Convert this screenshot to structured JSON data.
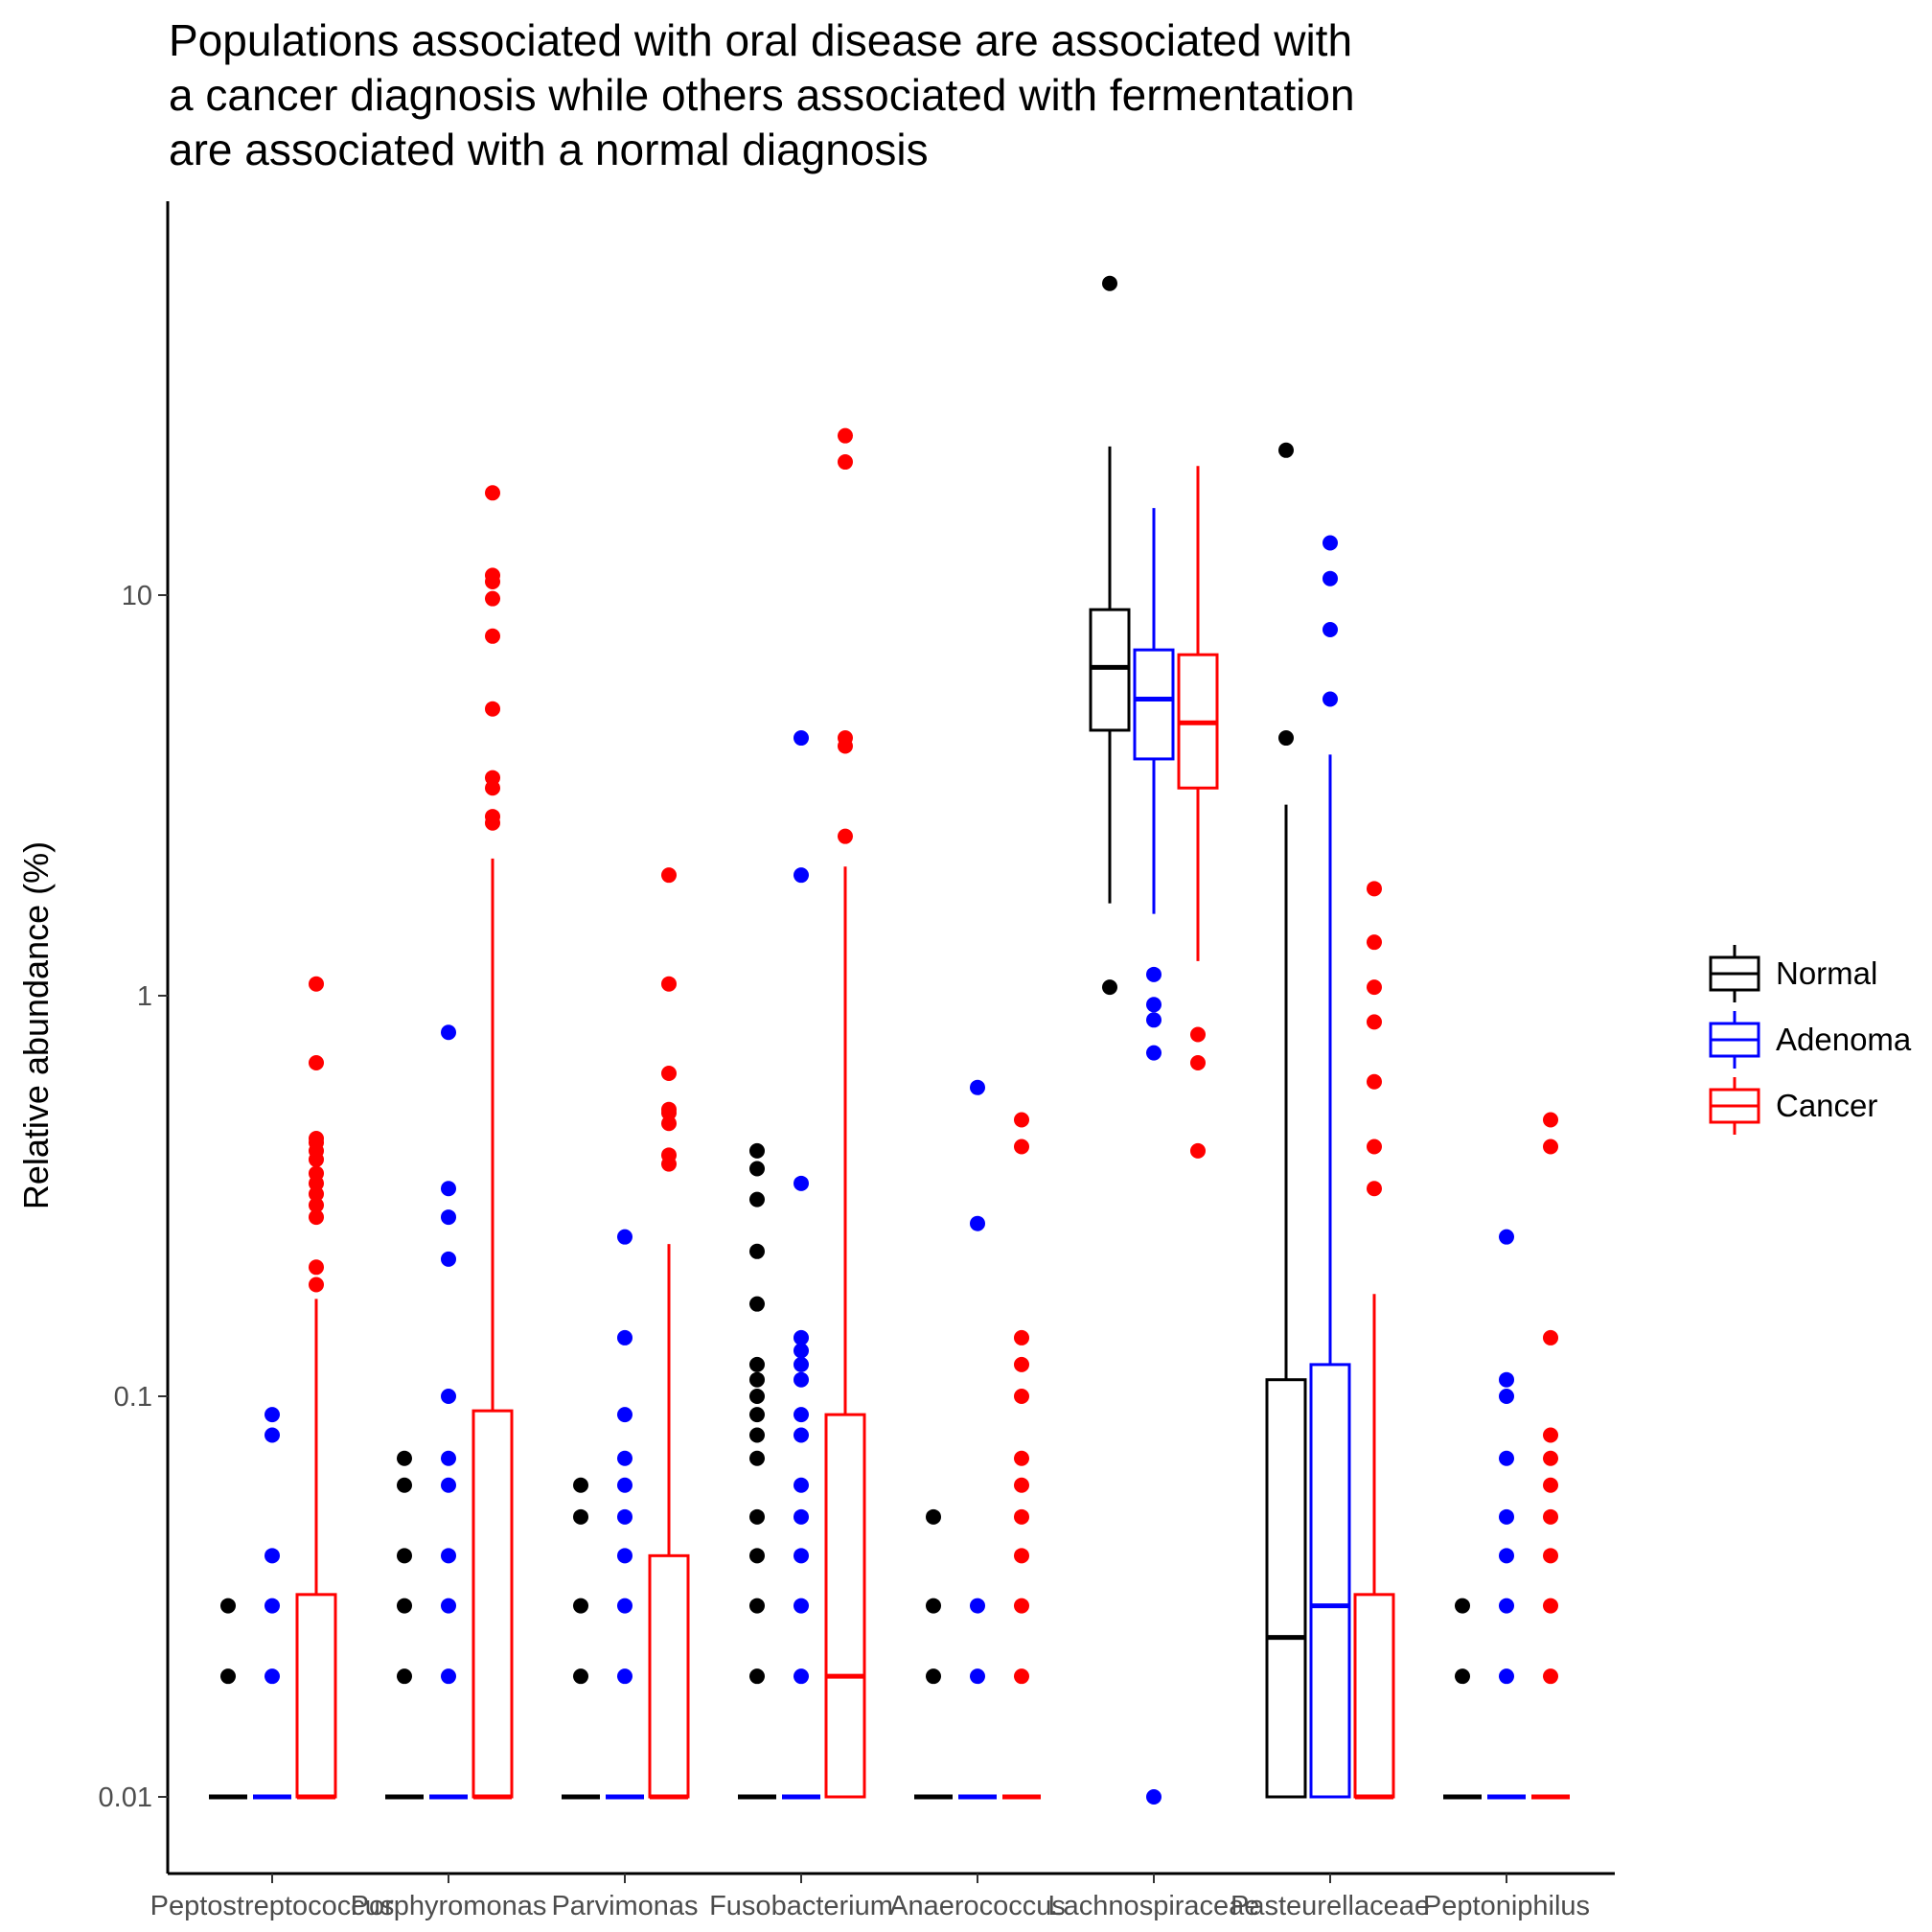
{
  "chart_data": {
    "type": "boxplot",
    "title": [
      "Populations associated with oral disease are associated with",
      "a cancer diagnosis while others associated with fermentation",
      "are associated with a normal diagnosis"
    ],
    "xlabel": "",
    "ylabel": "Relative abundance (%)",
    "yscale": "log10",
    "ylim": [
      0.0075,
      1000
    ],
    "yticks": [
      0.01,
      0.1,
      1,
      10
    ],
    "ytick_labels": [
      "0.01",
      "0.1",
      "1",
      "10"
    ],
    "legend_position": "right",
    "categories": [
      "Peptostreptococcus",
      "Porphyromonas",
      "Parvimonas",
      "Fusobacterium",
      "Anaerococcus",
      "Lachnospiraceae",
      "Pasteurellaceae",
      "Peptoniphilus"
    ],
    "series": [
      {
        "name": "Normal",
        "color": "#000000",
        "boxes": [
          {
            "q1": 0.01,
            "median": 0.01,
            "q3": 0.01,
            "whisker_low": 0.01,
            "whisker_high": 0.01,
            "outliers": [
              0.02,
              0.03
            ]
          },
          {
            "q1": 0.01,
            "median": 0.01,
            "q3": 0.01,
            "whisker_low": 0.01,
            "whisker_high": 0.01,
            "outliers": [
              0.02,
              0.03,
              0.04,
              0.06,
              0.07
            ]
          },
          {
            "q1": 0.01,
            "median": 0.01,
            "q3": 0.01,
            "whisker_low": 0.01,
            "whisker_high": 0.01,
            "outliers": [
              0.02,
              0.03,
              0.05,
              0.06
            ]
          },
          {
            "q1": 0.01,
            "median": 0.01,
            "q3": 0.01,
            "whisker_low": 0.01,
            "whisker_high": 0.01,
            "outliers": [
              0.02,
              0.03,
              0.04,
              0.05,
              0.07,
              0.08,
              0.09,
              0.1,
              0.11,
              0.12,
              0.17,
              0.23,
              0.31,
              0.37,
              0.41
            ]
          },
          {
            "q1": 0.01,
            "median": 0.01,
            "q3": 0.01,
            "whisker_low": 0.01,
            "whisker_high": 0.01,
            "outliers": [
              0.02,
              0.03,
              0.05
            ]
          },
          {
            "q1": 4.6,
            "median": 6.6,
            "q3": 9.2,
            "whisker_low": 1.7,
            "whisker_high": 23.5,
            "outliers": [
              1.05,
              60
            ]
          },
          {
            "q1": 0.01,
            "median": 0.025,
            "q3": 0.11,
            "whisker_low": 0.01,
            "whisker_high": 3.0,
            "outliers": [
              4.4,
              23
            ]
          },
          {
            "q1": 0.01,
            "median": 0.01,
            "q3": 0.01,
            "whisker_low": 0.01,
            "whisker_high": 0.01,
            "outliers": [
              0.02,
              0.03
            ]
          }
        ]
      },
      {
        "name": "Adenoma",
        "color": "#0000ff",
        "boxes": [
          {
            "q1": 0.01,
            "median": 0.01,
            "q3": 0.01,
            "whisker_low": 0.01,
            "whisker_high": 0.01,
            "outliers": [
              0.02,
              0.03,
              0.04,
              0.08,
              0.09
            ]
          },
          {
            "q1": 0.01,
            "median": 0.01,
            "q3": 0.01,
            "whisker_low": 0.01,
            "whisker_high": 0.01,
            "outliers": [
              0.02,
              0.03,
              0.04,
              0.06,
              0.07,
              0.1,
              0.22,
              0.28,
              0.33,
              0.81
            ]
          },
          {
            "q1": 0.01,
            "median": 0.01,
            "q3": 0.01,
            "whisker_low": 0.01,
            "whisker_high": 0.01,
            "outliers": [
              0.02,
              0.03,
              0.04,
              0.05,
              0.06,
              0.07,
              0.09,
              0.14,
              0.25
            ]
          },
          {
            "q1": 0.01,
            "median": 0.01,
            "q3": 0.01,
            "whisker_low": 0.01,
            "whisker_high": 0.01,
            "outliers": [
              0.02,
              0.03,
              0.04,
              0.05,
              0.06,
              0.08,
              0.09,
              0.11,
              0.12,
              0.13,
              0.14,
              0.34,
              2.0,
              4.4
            ]
          },
          {
            "q1": 0.01,
            "median": 0.01,
            "q3": 0.01,
            "whisker_low": 0.01,
            "whisker_high": 0.01,
            "outliers": [
              0.02,
              0.03,
              0.27,
              0.59
            ]
          },
          {
            "q1": 3.9,
            "median": 5.5,
            "q3": 7.3,
            "whisker_low": 1.6,
            "whisker_high": 16.5,
            "outliers": [
              0.01,
              0.72,
              0.87,
              0.95,
              1.13
            ]
          },
          {
            "q1": 0.01,
            "median": 0.03,
            "q3": 0.12,
            "whisker_low": 0.01,
            "whisker_high": 4.0,
            "outliers": [
              5.5,
              8.2,
              11,
              13.5
            ]
          },
          {
            "q1": 0.01,
            "median": 0.01,
            "q3": 0.01,
            "whisker_low": 0.01,
            "whisker_high": 0.01,
            "outliers": [
              0.02,
              0.03,
              0.04,
              0.05,
              0.07,
              0.1,
              0.11,
              0.25
            ]
          }
        ]
      },
      {
        "name": "Cancer",
        "color": "#ff0000",
        "boxes": [
          {
            "q1": 0.01,
            "median": 0.01,
            "q3": 0.032,
            "whisker_low": 0.01,
            "whisker_high": 0.175,
            "outliers": [
              0.19,
              0.21,
              0.28,
              0.3,
              0.32,
              0.34,
              0.36,
              0.39,
              0.41,
              0.43,
              0.44,
              0.68,
              1.07
            ]
          },
          {
            "q1": 0.01,
            "median": 0.01,
            "q3": 0.092,
            "whisker_low": 0.01,
            "whisker_high": 2.2,
            "outliers": [
              2.7,
              2.8,
              3.3,
              3.5,
              5.2,
              7.9,
              9.8,
              10.8,
              11.2,
              18
            ]
          },
          {
            "q1": 0.01,
            "median": 0.01,
            "q3": 0.04,
            "whisker_low": 0.01,
            "whisker_high": 0.24,
            "outliers": [
              0.38,
              0.4,
              0.48,
              0.51,
              0.52,
              0.64,
              1.07,
              2.0
            ]
          },
          {
            "q1": 0.01,
            "median": 0.02,
            "q3": 0.09,
            "whisker_low": 0.01,
            "whisker_high": 2.1,
            "outliers": [
              2.5,
              4.2,
              4.4,
              21.5,
              25
            ]
          },
          {
            "q1": 0.01,
            "median": 0.01,
            "q3": 0.01,
            "whisker_low": 0.01,
            "whisker_high": 0.01,
            "outliers": [
              0.02,
              0.03,
              0.04,
              0.05,
              0.06,
              0.07,
              0.1,
              0.12,
              0.14,
              0.42,
              0.49
            ]
          },
          {
            "q1": 3.3,
            "median": 4.8,
            "q3": 7.1,
            "whisker_low": 1.22,
            "whisker_high": 21,
            "outliers": [
              0.41,
              0.68,
              0.8
            ]
          },
          {
            "q1": 0.01,
            "median": 0.01,
            "q3": 0.032,
            "whisker_low": 0.01,
            "whisker_high": 0.18,
            "outliers": [
              0.33,
              0.42,
              0.61,
              0.86,
              1.05,
              1.36,
              1.85
            ]
          },
          {
            "q1": 0.01,
            "median": 0.01,
            "q3": 0.01,
            "whisker_low": 0.01,
            "whisker_high": 0.01,
            "outliers": [
              0.02,
              0.03,
              0.04,
              0.05,
              0.06,
              0.07,
              0.08,
              0.14,
              0.42,
              0.49
            ]
          }
        ]
      }
    ]
  }
}
